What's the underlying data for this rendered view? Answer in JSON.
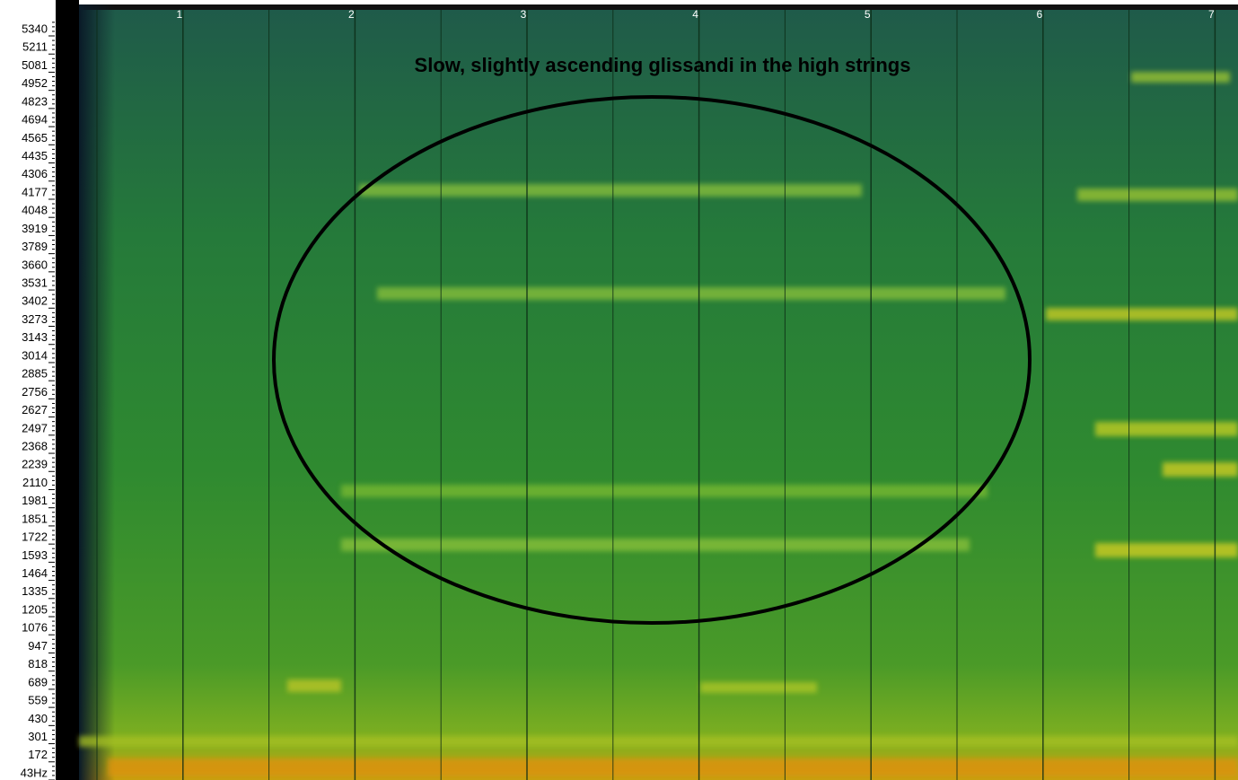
{
  "annotation": "Slow, slightly ascending glissandi in the high strings",
  "frequency_labels": [
    "5340",
    "5211",
    "5081",
    "4952",
    "4823",
    "4694",
    "4565",
    "4435",
    "4306",
    "4177",
    "4048",
    "3919",
    "3789",
    "3660",
    "3531",
    "3402",
    "3273",
    "3143",
    "3014",
    "2885",
    "2756",
    "2627",
    "2497",
    "2368",
    "2239",
    "2110",
    "1981",
    "1851",
    "1722",
    "1593",
    "1464",
    "1335",
    "1205",
    "1076",
    "947",
    "818",
    "689",
    "559",
    "430",
    "301",
    "172",
    "43Hz"
  ],
  "bar_numbers": [
    "1",
    "2",
    "3",
    "4",
    "5",
    "6",
    "7"
  ]
}
